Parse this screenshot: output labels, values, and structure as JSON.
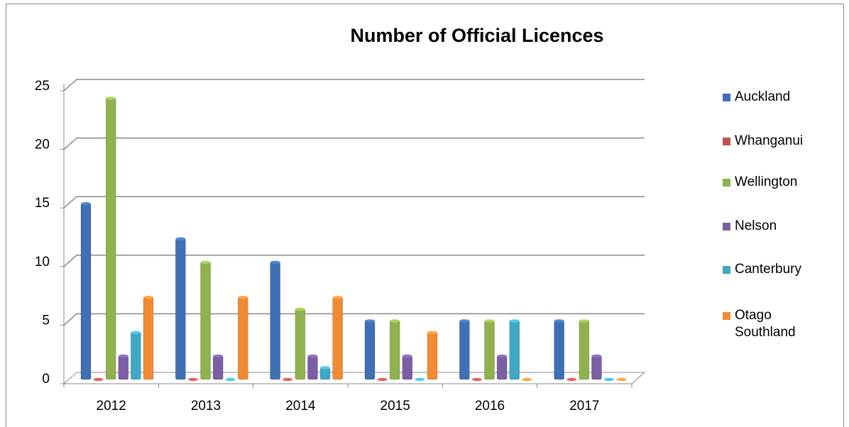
{
  "chart_data": {
    "type": "bar",
    "title": "Number of Official Licences",
    "categories": [
      "2012",
      "2013",
      "2014",
      "2015",
      "2016",
      "2017"
    ],
    "series": [
      {
        "name": "Auckland",
        "color": "#3f6fb5",
        "values": [
          15,
          12,
          10,
          5,
          5,
          5
        ]
      },
      {
        "name": "Whanganui",
        "color": "#c0504d",
        "values": [
          0,
          0,
          0,
          0,
          0,
          0
        ]
      },
      {
        "name": "Wellington",
        "color": "#8fb24f",
        "values": [
          24,
          10,
          6,
          5,
          5,
          5
        ]
      },
      {
        "name": "Nelson",
        "color": "#7b5ea3",
        "values": [
          2,
          2,
          2,
          2,
          2,
          2
        ]
      },
      {
        "name": "Canterbury",
        "color": "#3fa8c4",
        "values": [
          4,
          0,
          1,
          0,
          5,
          0
        ]
      },
      {
        "name": "Otago Southland",
        "color": "#f08a33",
        "values": [
          7,
          7,
          7,
          4,
          0,
          0
        ]
      }
    ],
    "ylim": [
      0,
      25
    ],
    "yticks": [
      0,
      5,
      10,
      15,
      20,
      25
    ],
    "grid": true,
    "legend": "right"
  }
}
